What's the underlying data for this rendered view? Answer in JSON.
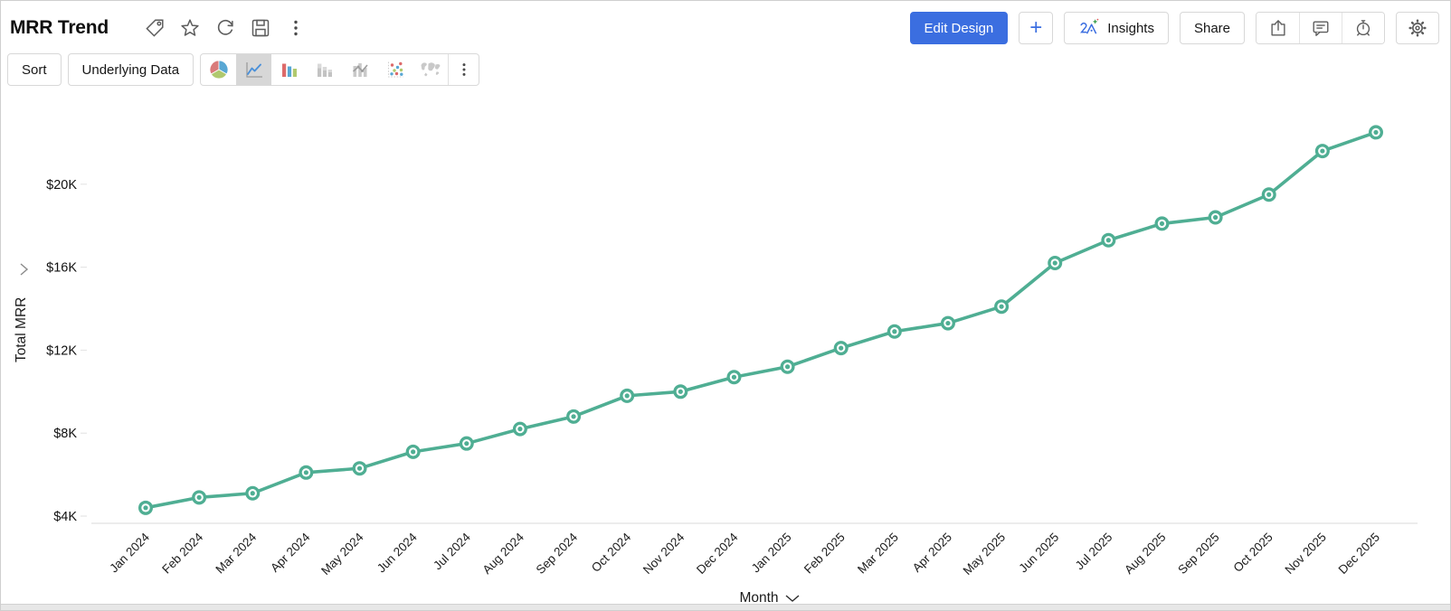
{
  "header": {
    "title": "MRR Trend",
    "actions": {
      "edit_design": "Edit Design",
      "add": "+",
      "insights": "Insights",
      "share": "Share"
    }
  },
  "toolbar": {
    "sort": "Sort",
    "underlying_data": "Underlying Data",
    "chart_types": [
      "pie",
      "line",
      "bar",
      "stacked-bar",
      "combo-bar",
      "scatter",
      "map"
    ],
    "selected_chart_type": "line"
  },
  "chart_data": {
    "type": "line",
    "title": "",
    "ylabel": "Total MRR",
    "xlabel": "Month",
    "categories": [
      "Jan 2024",
      "Feb 2024",
      "Mar 2024",
      "Apr 2024",
      "May 2024",
      "Jun 2024",
      "Jul 2024",
      "Aug 2024",
      "Sep 2024",
      "Oct 2024",
      "Nov 2024",
      "Dec 2024",
      "Jan 2025",
      "Feb 2025",
      "Mar 2025",
      "Apr 2025",
      "May 2025",
      "Jun 2025",
      "Jul 2025",
      "Aug 2025",
      "Sep 2025",
      "Oct 2025",
      "Nov 2025",
      "Dec 2025"
    ],
    "series": [
      {
        "name": "Total MRR",
        "unit": "USD thousands ($K)",
        "values": [
          4.4,
          4.9,
          5.1,
          6.1,
          6.3,
          7.1,
          7.5,
          8.2,
          8.8,
          9.8,
          10.0,
          10.7,
          11.2,
          12.1,
          12.9,
          13.3,
          14.1,
          16.2,
          17.3,
          18.1,
          18.4,
          19.5,
          21.6,
          22.5
        ]
      }
    ],
    "y_axis": {
      "tick_values": [
        4,
        8,
        12,
        16,
        20
      ],
      "tick_labels": [
        "$4K",
        "$8K",
        "$12K",
        "$16K",
        "$20K"
      ],
      "range": [
        4,
        24
      ]
    },
    "grid": false,
    "legend": "none",
    "style": {
      "line_color": "#4FAE93",
      "marker": "circle-ring",
      "accent_blue": "#3B6EE0",
      "axis_line_color": "#d9d9d9",
      "tick_text_color": "#111111",
      "x_label_rotation_deg": -45
    }
  }
}
